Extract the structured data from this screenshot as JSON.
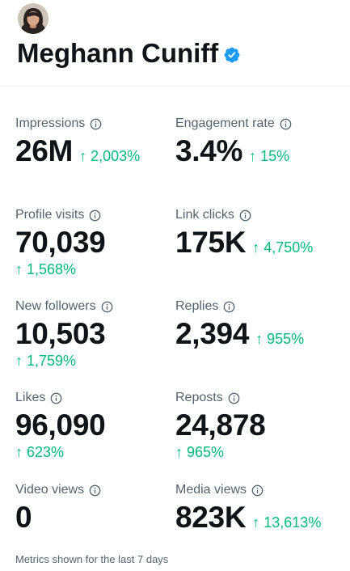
{
  "profile": {
    "name": "Meghann Cuniff"
  },
  "metrics": [
    {
      "label": "Impressions",
      "value": "26M",
      "change": "↑ 2,003%"
    },
    {
      "label": "Engagement rate",
      "value": "3.4%",
      "change": "↑ 15%"
    },
    {
      "label": "Profile visits",
      "value": "70,039",
      "change": "↑ 1,568%"
    },
    {
      "label": "Link clicks",
      "value": "175K",
      "change": "↑ 4,750%"
    },
    {
      "label": "New followers",
      "value": "10,503",
      "change": "↑ 1,759%"
    },
    {
      "label": "Replies",
      "value": "2,394",
      "change": "↑ 955%"
    },
    {
      "label": "Likes",
      "value": "96,090",
      "change": "↑ 623%"
    },
    {
      "label": "Reposts",
      "value": "24,878",
      "change": "↑ 965%"
    },
    {
      "label": "Video views",
      "value": "0",
      "change": ""
    },
    {
      "label": "Media views",
      "value": "823K",
      "change": "↑ 13,613%"
    }
  ],
  "footer": "Metrics shown for the last 7 days",
  "colors": {
    "positive": "#00ba7c",
    "verified": "#1d9bf0",
    "muted": "#536471",
    "text": "#0f1419"
  },
  "icons": {
    "verified": "verified-badge-icon",
    "info": "info-icon"
  }
}
